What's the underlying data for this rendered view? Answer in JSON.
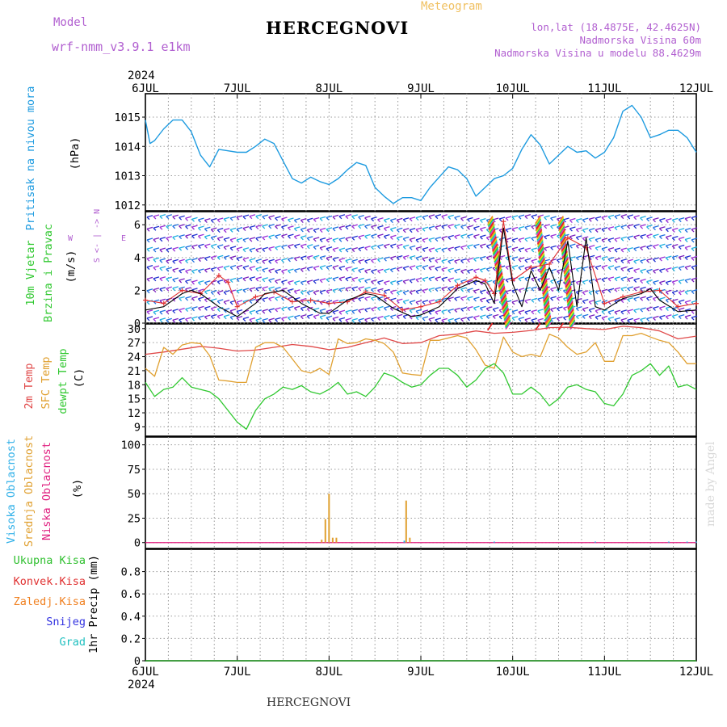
{
  "header": {
    "model_label": "Model",
    "model_version": "wrf-nmm_v3.9.1  e1km",
    "title": "HERCEGNOVI",
    "meteogram_label": "Meteogram",
    "lonlat": "lon,lat (18.4875E, 42.4625N)",
    "elevation": "Nadmorska Visina 60m",
    "model_elevation": "Nadmorska Visina u modelu 88.4629m"
  },
  "footer": {
    "station": "HERCEGNOVI",
    "watermark": "made by Angel"
  },
  "axis_top": {
    "year": "2024",
    "days": [
      "6JUL",
      "7JUL",
      "8JUL",
      "9JUL",
      "10JUL",
      "11JUL",
      "12JUL"
    ]
  },
  "axis_bottom": {
    "year": "2024",
    "days": [
      "6JUL",
      "7JUL",
      "8JUL",
      "9JUL",
      "10JUL",
      "11JUL",
      "12JUL"
    ]
  },
  "panels": {
    "pressure": {
      "labels": [
        "Pritisak na nivou mora"
      ],
      "unit": "(hPa)",
      "ticks": [
        "1012",
        "1013",
        "1014",
        "1015"
      ]
    },
    "wind": {
      "labels": [
        "10m Vjetar",
        "Brzina i Pravac"
      ],
      "unit": "(m/s)",
      "ticks": [
        "0",
        "2",
        "4",
        "6"
      ],
      "compass_ns": "S <- | -> N",
      "compass_w": "W",
      "compass_e": "E"
    },
    "temp": {
      "labels": [
        "2m Temp",
        "SFC Temp",
        "dewpt Temp"
      ],
      "unit": "(C)",
      "ticks": [
        "9",
        "12",
        "15",
        "18",
        "21",
        "24",
        "27",
        "30"
      ]
    },
    "cloud": {
      "labels": [
        "Visoka Oblacnost",
        "Srednja Oblacnost",
        "Niska Oblacnost"
      ],
      "unit": "(%)",
      "ticks": [
        "0",
        "25",
        "50",
        "75",
        "100"
      ]
    },
    "precip": {
      "labels": [
        "Ukupna Kisa",
        "Konvek.Kisa",
        "Zaledj.Kisa",
        "Snijeg",
        "Grad"
      ],
      "unit": "1hr Precip (mm)",
      "ticks": [
        "0",
        "0.2",
        "0.4",
        "0.6",
        "0.8"
      ]
    }
  },
  "colors": {
    "pressure": "#1e9be0",
    "wind_speed": "#000000",
    "wind_gust": "#e03030",
    "temp2m": "#e04848",
    "tsfc": "#e0a030",
    "dewpt": "#30c830",
    "cloud_high": "#30b0e8",
    "cloud_mid": "#e0a030",
    "cloud_low": "#e02080",
    "precip_total": "#30c030",
    "precip_conv": "#e03030",
    "precip_frz": "#f08020",
    "snow": "#3030e0",
    "hail": "#20c0c0",
    "model_text": "#b15fd0"
  },
  "chart_data": [
    {
      "type": "line",
      "title": "",
      "ylabel": "(hPa)",
      "xlabel": "",
      "x_unit": "days since 6JUL 00",
      "ylim": [
        1011.8,
        1015.8
      ],
      "series": [
        {
          "name": "Pritisak na nivou mora",
          "x": [
            0,
            0.05,
            0.1,
            0.2,
            0.3,
            0.4,
            0.5,
            0.6,
            0.7,
            0.8,
            0.9,
            1.0,
            1.1,
            1.2,
            1.3,
            1.4,
            1.5,
            1.6,
            1.7,
            1.8,
            1.9,
            2.0,
            2.1,
            2.2,
            2.3,
            2.4,
            2.5,
            2.6,
            2.7,
            2.8,
            2.9,
            3.0,
            3.1,
            3.2,
            3.3,
            3.4,
            3.5,
            3.6,
            3.7,
            3.8,
            3.9,
            4.0,
            4.1,
            4.2,
            4.3,
            4.4,
            4.5,
            4.6,
            4.7,
            4.8,
            4.9,
            5.0,
            5.1,
            5.2,
            5.3,
            5.4,
            5.5,
            5.6,
            5.7,
            5.8,
            5.9,
            6.0
          ],
          "values": [
            1014.9,
            1014.1,
            1014.2,
            1014.6,
            1014.9,
            1014.9,
            1014.5,
            1013.7,
            1013.3,
            1013.9,
            1013.85,
            1013.8,
            1013.8,
            1014.0,
            1014.25,
            1014.1,
            1013.5,
            1012.9,
            1012.75,
            1012.95,
            1012.8,
            1012.7,
            1012.9,
            1013.2,
            1013.45,
            1013.35,
            1012.6,
            1012.3,
            1012.05,
            1012.25,
            1012.25,
            1012.15,
            1012.6,
            1012.95,
            1013.3,
            1013.2,
            1012.9,
            1012.3,
            1012.6,
            1012.9,
            1013.0,
            1013.25,
            1013.9,
            1014.4,
            1014.05,
            1013.4,
            1013.7,
            1014.0,
            1013.8,
            1013.85,
            1013.6,
            1013.8,
            1014.3,
            1015.2,
            1015.4,
            1015.0,
            1014.3,
            1014.4,
            1014.55,
            1014.55,
            1014.3,
            1013.8
          ]
        }
      ]
    },
    {
      "type": "line",
      "title": "",
      "ylabel": "(m/s)",
      "ylim": [
        0,
        6.8
      ],
      "series": [
        {
          "name": "speed",
          "x": [
            0,
            0.2,
            0.4,
            0.5,
            0.6,
            0.8,
            1.0,
            1.2,
            1.3,
            1.5,
            1.7,
            1.9,
            2.0,
            2.2,
            2.4,
            2.5,
            2.7,
            2.9,
            3.0,
            3.2,
            3.4,
            3.6,
            3.7,
            3.8,
            3.9,
            4.0,
            4.1,
            4.2,
            4.3,
            4.4,
            4.5,
            4.6,
            4.7,
            4.8,
            4.9,
            5.0,
            5.2,
            5.4,
            5.5,
            5.6,
            5.8,
            6.0
          ],
          "values": [
            0.8,
            1.0,
            1.8,
            2.0,
            1.8,
            1.0,
            0.4,
            1.2,
            1.8,
            2.0,
            1.2,
            0.6,
            0.6,
            1.4,
            1.8,
            1.7,
            0.9,
            0.4,
            0.5,
            1.0,
            2.1,
            2.6,
            2.4,
            1.2,
            5.8,
            2.4,
            1.0,
            3.2,
            2.0,
            3.4,
            2.0,
            5.0,
            1.0,
            5.2,
            1.0,
            0.8,
            1.5,
            1.8,
            2.1,
            1.4,
            0.7,
            0.8
          ]
        },
        {
          "name": "gust",
          "x": [
            0,
            0.2,
            0.4,
            0.6,
            0.8,
            0.9,
            1.0,
            1.2,
            1.4,
            1.6,
            1.8,
            2.0,
            2.2,
            2.4,
            2.6,
            2.8,
            3.0,
            3.2,
            3.4,
            3.6,
            3.7,
            3.8,
            3.9,
            4.0,
            4.2,
            4.4,
            4.6,
            4.8,
            5.0,
            5.2,
            5.4,
            5.6,
            5.8,
            6.0
          ],
          "values": [
            1.4,
            1.2,
            2.0,
            1.8,
            2.9,
            2.5,
            1.0,
            1.6,
            1.9,
            1.3,
            1.4,
            1.2,
            1.3,
            1.9,
            1.7,
            0.8,
            1.0,
            1.3,
            2.3,
            2.8,
            2.6,
            1.8,
            6.2,
            2.6,
            3.4,
            3.6,
            5.2,
            4.6,
            1.2,
            1.6,
            1.9,
            2.0,
            1.0,
            1.2
          ]
        }
      ]
    },
    {
      "type": "line",
      "title": "",
      "ylabel": "(C)",
      "ylim": [
        7,
        31
      ],
      "series": [
        {
          "name": "2m Temp",
          "x": [
            0,
            0.2,
            0.4,
            0.6,
            0.8,
            1.0,
            1.2,
            1.4,
            1.6,
            1.8,
            2.0,
            2.2,
            2.4,
            2.6,
            2.8,
            3.0,
            3.2,
            3.4,
            3.6,
            3.8,
            4.0,
            4.2,
            4.4,
            4.6,
            4.8,
            5.0,
            5.2,
            5.4,
            5.6,
            5.8,
            6.0
          ],
          "values": [
            24.5,
            25.0,
            25.6,
            26.2,
            25.8,
            25.2,
            25.4,
            26.0,
            26.6,
            26.2,
            25.5,
            26.0,
            27.0,
            28.0,
            26.8,
            27.0,
            28.5,
            28.8,
            29.5,
            29.0,
            29.2,
            29.6,
            30.2,
            30.3,
            30.0,
            29.8,
            30.5,
            30.2,
            29.5,
            27.8,
            28.4
          ]
        },
        {
          "name": "SFC Temp",
          "x": [
            0,
            0.1,
            0.2,
            0.3,
            0.4,
            0.5,
            0.6,
            0.7,
            0.8,
            0.9,
            1.0,
            1.1,
            1.2,
            1.3,
            1.4,
            1.5,
            1.6,
            1.7,
            1.8,
            1.9,
            2.0,
            2.1,
            2.2,
            2.3,
            2.4,
            2.5,
            2.6,
            2.7,
            2.8,
            2.9,
            3.0,
            3.1,
            3.2,
            3.3,
            3.4,
            3.5,
            3.6,
            3.7,
            3.8,
            3.9,
            4.0,
            4.1,
            4.2,
            4.3,
            4.4,
            4.5,
            4.6,
            4.7,
            4.8,
            4.9,
            5.0,
            5.1,
            5.2,
            5.3,
            5.4,
            5.5,
            5.6,
            5.7,
            5.8,
            5.9,
            6.0
          ],
          "values": [
            21.5,
            19.8,
            26.0,
            24.5,
            26.5,
            27.0,
            26.8,
            24.2,
            19.0,
            18.8,
            18.5,
            18.5,
            26.0,
            27.0,
            27.0,
            26.0,
            23.5,
            21.0,
            20.5,
            21.5,
            20.2,
            27.8,
            26.8,
            27.0,
            27.8,
            27.5,
            26.8,
            25.0,
            20.5,
            20.2,
            20.0,
            27.5,
            27.5,
            28.0,
            28.5,
            28.0,
            25.5,
            22.2,
            21.5,
            28.2,
            25.0,
            24.0,
            24.5,
            24.0,
            28.8,
            28.0,
            26.0,
            24.5,
            25.0,
            27.0,
            23.0,
            23.0,
            28.5,
            28.5,
            29.0,
            28.2,
            27.5,
            27.0,
            25.0,
            22.5,
            22.5
          ]
        },
        {
          "name": "dewpt Temp",
          "x": [
            0,
            0.1,
            0.2,
            0.3,
            0.4,
            0.5,
            0.6,
            0.7,
            0.8,
            0.9,
            1.0,
            1.1,
            1.2,
            1.3,
            1.4,
            1.5,
            1.6,
            1.7,
            1.8,
            1.9,
            2.0,
            2.1,
            2.2,
            2.3,
            2.4,
            2.5,
            2.6,
            2.7,
            2.8,
            2.9,
            3.0,
            3.1,
            3.2,
            3.3,
            3.4,
            3.5,
            3.6,
            3.7,
            3.8,
            3.9,
            4.0,
            4.1,
            4.2,
            4.3,
            4.4,
            4.5,
            4.6,
            4.7,
            4.8,
            4.9,
            5.0,
            5.1,
            5.2,
            5.3,
            5.4,
            5.5,
            5.6,
            5.7,
            5.8,
            5.9,
            6.0
          ],
          "values": [
            18.5,
            15.5,
            17.0,
            17.5,
            19.5,
            17.5,
            17.0,
            16.5,
            15.0,
            12.5,
            10.0,
            8.5,
            12.5,
            15.0,
            16.0,
            17.5,
            17.0,
            17.8,
            16.5,
            16.0,
            17.0,
            18.5,
            16.0,
            16.5,
            15.5,
            17.5,
            20.5,
            19.8,
            18.5,
            17.5,
            18.0,
            20.0,
            21.5,
            21.5,
            20.0,
            17.5,
            19.0,
            21.5,
            22.5,
            20.5,
            16.0,
            16.0,
            17.5,
            16.0,
            13.5,
            15.0,
            17.5,
            18.0,
            17.0,
            16.5,
            14.0,
            13.5,
            16.0,
            20.0,
            21.0,
            22.5,
            20.0,
            22.0,
            17.5,
            18.0,
            17.0
          ]
        }
      ]
    },
    {
      "type": "bar",
      "title": "",
      "ylabel": "(%)",
      "ylim": [
        0,
        100
      ],
      "series": [
        {
          "name": "Srednja Oblacnost",
          "x": [
            1.92,
            1.96,
            2.0,
            2.04,
            2.08,
            2.84,
            2.88
          ],
          "values": [
            3,
            24,
            50,
            5,
            5,
            43,
            5
          ]
        },
        {
          "name": "Visoka Oblacnost",
          "x": [
            2.82,
            3.8,
            4.9,
            5.7,
            5.9,
            6.0
          ],
          "values": [
            2,
            1,
            1,
            1,
            1,
            1
          ]
        }
      ]
    },
    {
      "type": "bar",
      "title": "",
      "ylabel": "1hr Precip (mm)",
      "ylim": [
        0,
        1.0
      ],
      "series": [
        {
          "name": "Ukupna Kisa",
          "x": [
            0,
            6
          ],
          "values": [
            0,
            0
          ]
        }
      ]
    }
  ]
}
